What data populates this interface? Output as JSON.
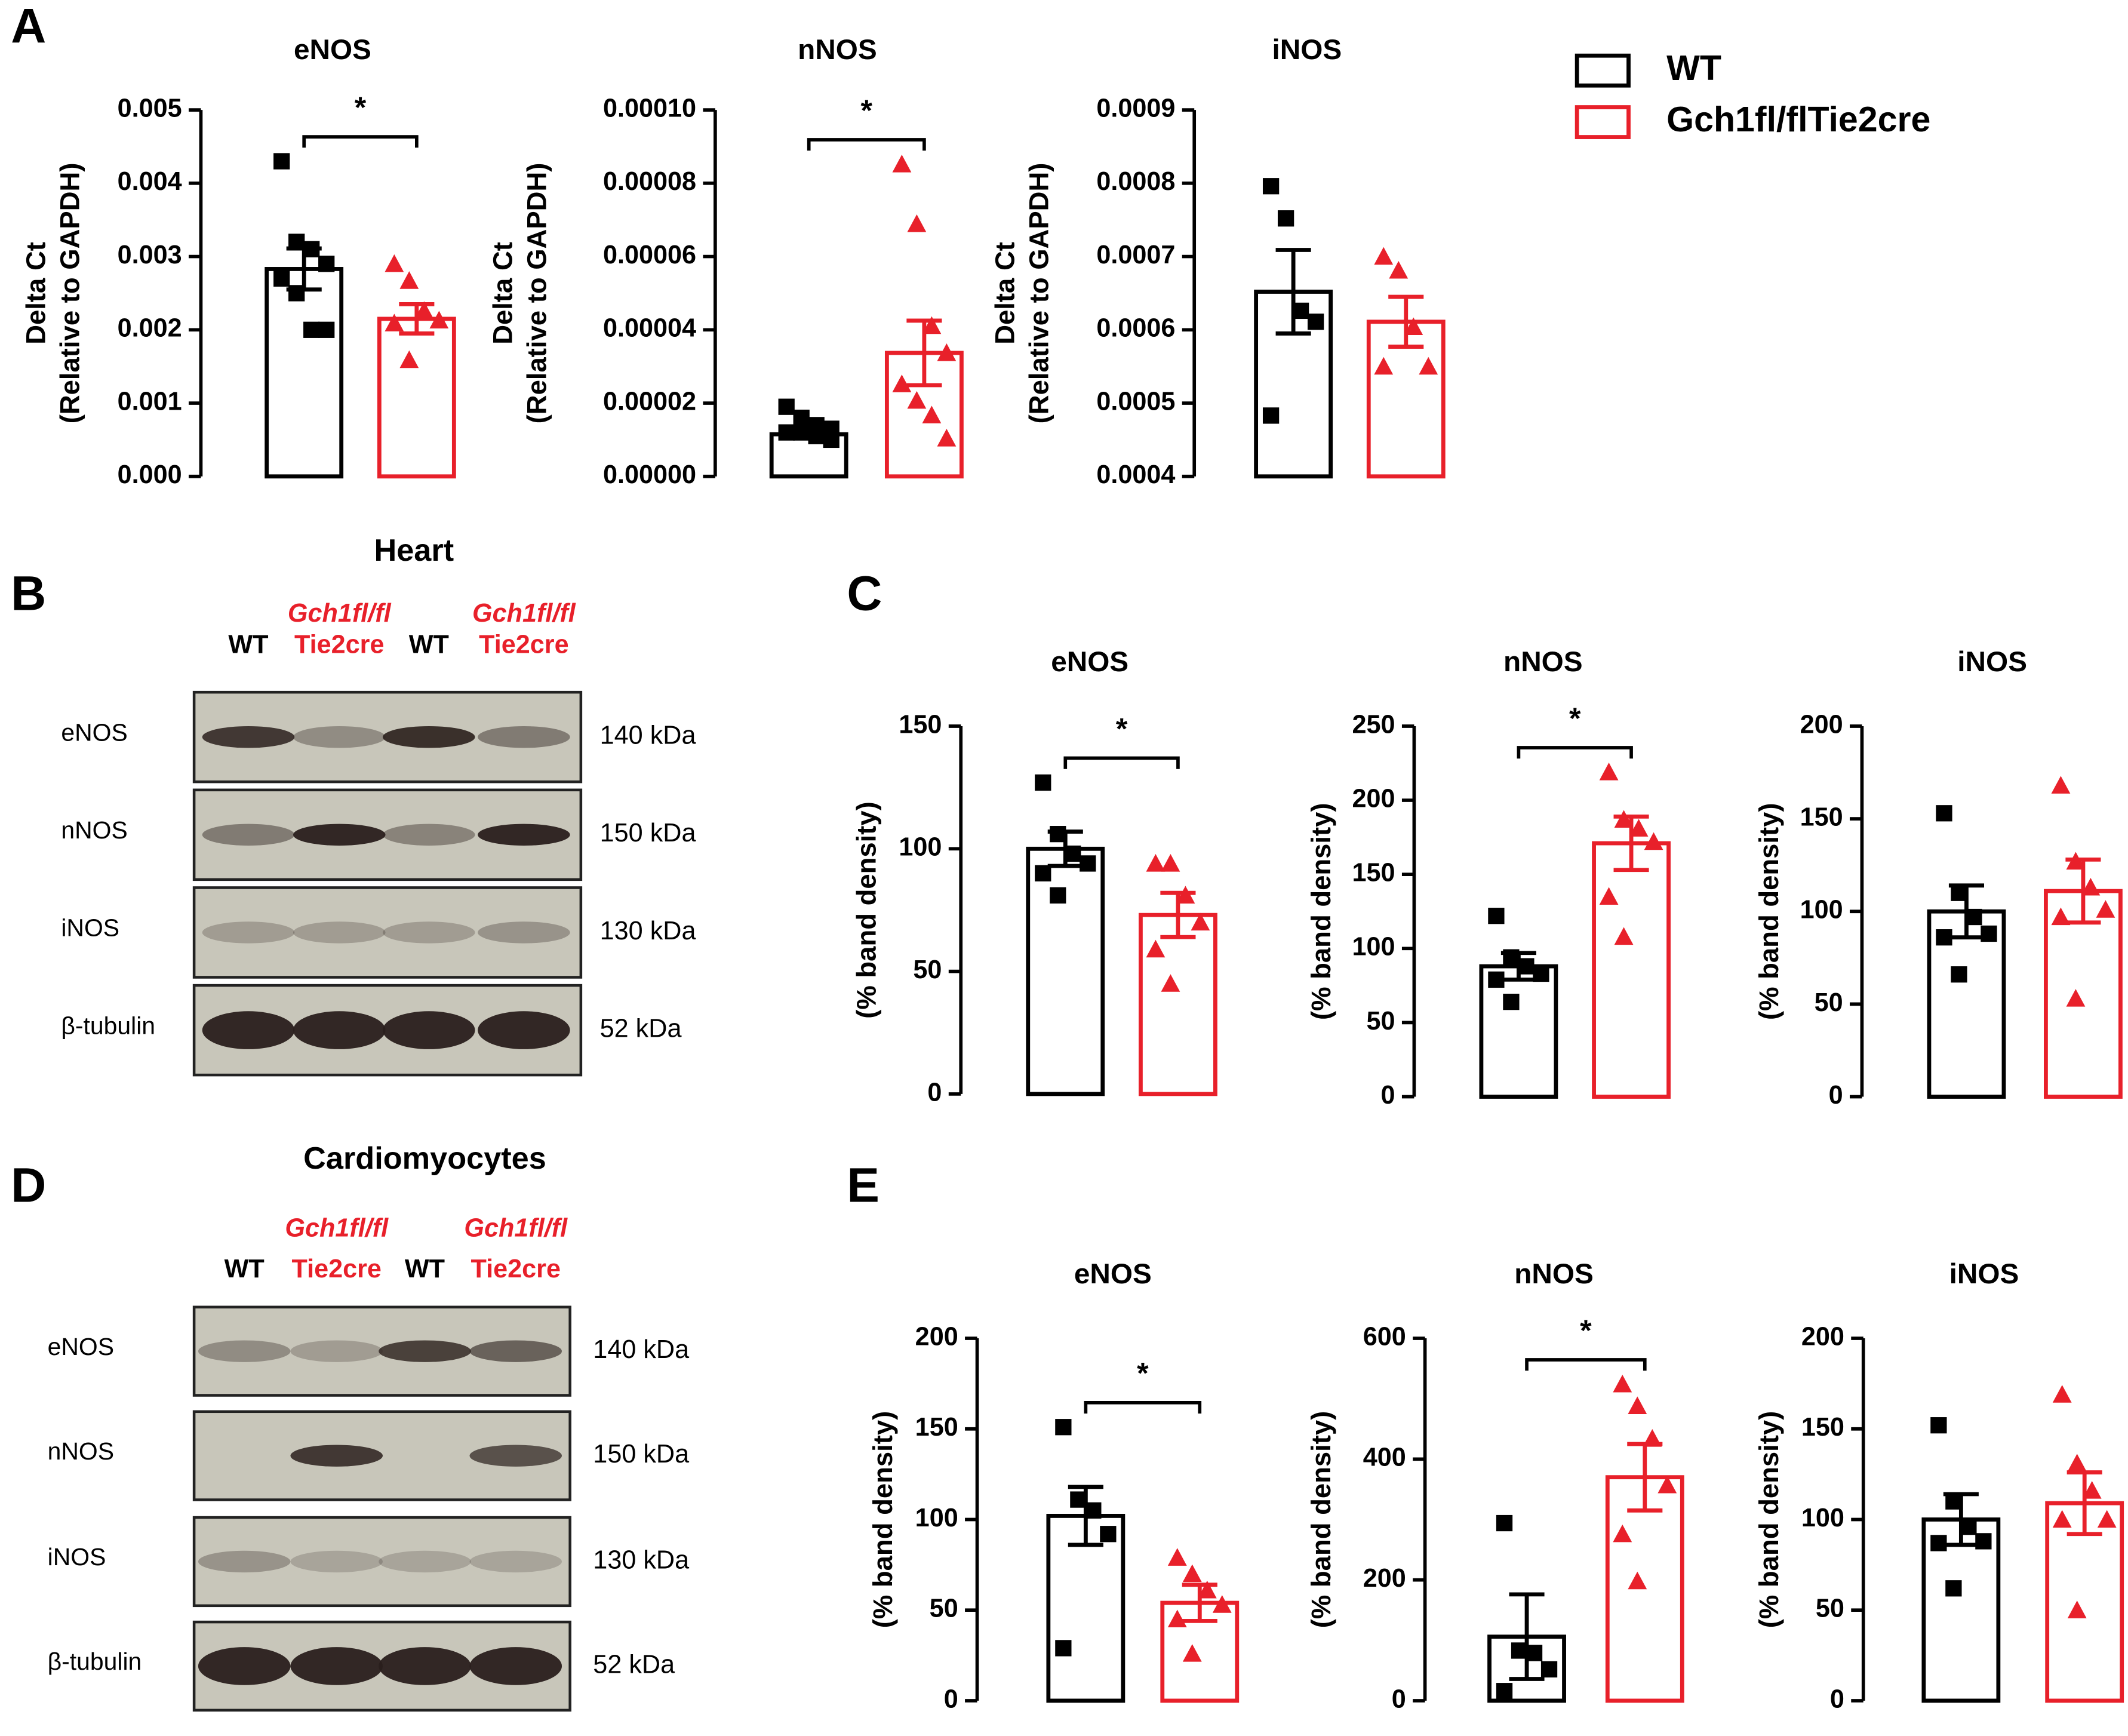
{
  "panel_labels": [
    "A",
    "B",
    "C",
    "D",
    "E"
  ],
  "chart_data": [
    {
      "type": "bar",
      "title": "eNOS",
      "ylabel": [
        "Delta Ct",
        "(Relative to GAPDH)"
      ],
      "significance": "*",
      "ylim": [
        0,
        0.005
      ],
      "yticks": [
        {
          "value": 0,
          "label": "0.000"
        },
        0.001,
        0.002,
        0.003,
        0.004,
        0.005
      ],
      "series": [
        {
          "name": "WT",
          "color": "#000000",
          "marker": "square",
          "values": [
            0.00283
          ],
          "errors": [
            0.00028
          ],
          "points": [
            0.0043,
            0.0032,
            0.0031,
            0.0029,
            0.0027,
            0.0025,
            0.002,
            0.002
          ]
        },
        {
          "name": "Gch1fl/flTie2cre",
          "color": "#e8202a",
          "marker": "triangle",
          "values": [
            0.00215
          ],
          "errors": [
            0.0002
          ],
          "points": [
            0.0029,
            0.00267,
            0.00226,
            0.00213,
            0.00209,
            0.00159
          ]
        }
      ]
    },
    {
      "type": "bar",
      "title": "nNOS",
      "ylabel": [
        "Delta Ct",
        "(Relative to GAPDH)"
      ],
      "significance": "*",
      "ylim": [
        0,
        0.0001
      ],
      "yticks": [
        {
          "value": 0,
          "label": "0.00000"
        },
        2e-05,
        4e-05,
        6e-05,
        8e-05,
        {
          "value": 0.0001,
          "label": "0.00010"
        }
      ],
      "series": [
        {
          "color": "#000000",
          "marker": "square",
          "values": [
            1.15e-05
          ],
          "errors": [
            1e-06
          ],
          "points": [
            1.9e-05,
            1.6e-05,
            1.4e-05,
            1.3e-05,
            1.2e-05,
            1.2e-05,
            1.1e-05,
            1e-05
          ]
        },
        {
          "color": "#e8202a",
          "marker": "triangle",
          "values": [
            3.37e-05
          ],
          "errors": [
            8.8e-06
          ],
          "points": [
            8.52e-05,
            6.89e-05,
            4.11e-05,
            3.37e-05,
            2.52e-05,
            2.07e-05,
            1.67e-05,
            1.04e-05
          ]
        }
      ]
    },
    {
      "type": "bar",
      "title": "iNOS",
      "ylabel": [
        "Delta Ct",
        "(Relative to GAPDH)"
      ],
      "ylim": [
        0.0004,
        0.0009
      ],
      "yticks": [
        0.0004,
        0.0005,
        0.0006,
        0.0007,
        0.0008,
        0.0009
      ],
      "series": [
        {
          "color": "#000000",
          "marker": "square",
          "values": [
            0.000652
          ],
          "errors": [
            5.7e-05
          ],
          "points": [
            0.000796,
            0.000752,
            0.000626,
            0.000611,
            0.000483
          ]
        },
        {
          "color": "#e8202a",
          "marker": "triangle",
          "values": [
            0.000611
          ],
          "errors": [
            3.4e-05
          ],
          "points": [
            0.0007,
            0.000681,
            0.000604,
            0.00055,
            0.00055
          ]
        }
      ]
    },
    {
      "type": "bar",
      "title": "eNOS",
      "ylabel": [
        "(% band density)"
      ],
      "significance": "*",
      "ylim": [
        0,
        150
      ],
      "yticks": [
        0,
        50,
        100,
        150
      ],
      "series": [
        {
          "color": "#000000",
          "marker": "square",
          "values": [
            100
          ],
          "errors": [
            7
          ],
          "points": [
            127,
            106,
            98,
            94,
            90,
            81
          ]
        },
        {
          "color": "#e8202a",
          "marker": "triangle",
          "values": [
            73
          ],
          "errors": [
            9
          ],
          "points": [
            94,
            94,
            81,
            70,
            59,
            45
          ]
        }
      ]
    },
    {
      "type": "bar",
      "title": "nNOS",
      "ylabel": [
        "(% band density)"
      ],
      "significance": "*",
      "ylim": [
        0,
        250
      ],
      "yticks": [
        0,
        50,
        100,
        150,
        200,
        250
      ],
      "series": [
        {
          "color": "#000000",
          "marker": "square",
          "values": [
            88
          ],
          "errors": [
            9
          ],
          "points": [
            122,
            94,
            88,
            83,
            79,
            64
          ]
        },
        {
          "color": "#e8202a",
          "marker": "triangle",
          "values": [
            171
          ],
          "errors": [
            18
          ],
          "points": [
            219,
            187,
            181,
            172,
            135,
            108
          ]
        }
      ]
    },
    {
      "type": "bar",
      "title": "iNOS",
      "ylabel": [
        "(% band density)"
      ],
      "ylim": [
        0,
        200
      ],
      "yticks": [
        0,
        50,
        100,
        150,
        200
      ],
      "series": [
        {
          "color": "#000000",
          "marker": "square",
          "values": [
            100
          ],
          "errors": [
            14
          ],
          "points": [
            153,
            110,
            97,
            88,
            86,
            66
          ]
        },
        {
          "color": "#e8202a",
          "marker": "triangle",
          "values": [
            111
          ],
          "errors": [
            17
          ],
          "points": [
            168,
            127,
            113,
            101,
            97,
            53
          ]
        }
      ]
    },
    {
      "type": "bar",
      "title": "eNOS",
      "ylabel": [
        "(% band density)"
      ],
      "significance": "*",
      "ylim": [
        0,
        200
      ],
      "yticks": [
        0,
        50,
        100,
        150,
        200
      ],
      "series": [
        {
          "color": "#000000",
          "marker": "square",
          "values": [
            102
          ],
          "errors": [
            16
          ],
          "points": [
            151,
            111,
            105,
            92,
            29
          ]
        },
        {
          "color": "#e8202a",
          "marker": "triangle",
          "values": [
            54
          ],
          "errors": [
            10
          ],
          "points": [
            79,
            70,
            61,
            53,
            45,
            26
          ]
        }
      ]
    },
    {
      "type": "bar",
      "title": "nNOS",
      "ylabel": [
        "(% band density)"
      ],
      "significance": "*",
      "ylim": [
        0,
        600
      ],
      "yticks": [
        0,
        200,
        400,
        600
      ],
      "series": [
        {
          "color": "#000000",
          "marker": "square",
          "values": [
            106
          ],
          "errors": [
            70
          ],
          "points": [
            294,
            83,
            79,
            52,
            16
          ]
        },
        {
          "color": "#e8202a",
          "marker": "triangle",
          "values": [
            370
          ],
          "errors": [
            55
          ],
          "points": [
            524,
            488,
            434,
            357,
            276,
            198
          ]
        }
      ]
    },
    {
      "type": "bar",
      "title": "iNOS",
      "ylabel": [
        "(% band density)"
      ],
      "ylim": [
        0,
        200
      ],
      "yticks": [
        0,
        50,
        100,
        150,
        200
      ],
      "series": [
        {
          "color": "#000000",
          "marker": "square",
          "values": [
            100
          ],
          "errors": [
            14
          ],
          "points": [
            152,
            110,
            96,
            88,
            87,
            62
          ]
        },
        {
          "color": "#e8202a",
          "marker": "triangle",
          "values": [
            109
          ],
          "errors": [
            17
          ],
          "points": [
            169,
            131,
            116,
            100,
            100,
            50
          ]
        }
      ]
    }
  ],
  "blots": [
    {
      "title": "Heart",
      "lanes": [
        [
          "WT"
        ],
        [
          "Gch1fl/fl",
          "Tie2cre"
        ],
        [
          "WT"
        ],
        [
          "Gch1fl/fl",
          "Tie2cre"
        ]
      ],
      "rows": [
        {
          "name": "eNOS",
          "size": "140  kDa"
        },
        {
          "name": "nNOS",
          "size": "150  kDa"
        },
        {
          "name": "iNOS",
          "size": "130  kDa"
        },
        {
          "name": "β-tubulin",
          "size": "52  kDa"
        }
      ]
    },
    {
      "title": "Cardiomyocytes",
      "lanes": [
        [
          "WT"
        ],
        [
          "Gch1fl/fl",
          "Tie2cre"
        ],
        [
          "WT"
        ],
        [
          "Gch1fl/fl",
          "Tie2cre"
        ]
      ],
      "rows": [
        {
          "name": "eNOS",
          "size": "140  kDa"
        },
        {
          "name": "nNOS",
          "size": "150  kDa"
        },
        {
          "name": "iNOS",
          "size": "130  kDa"
        },
        {
          "name": "β-tubulin",
          "size": "52 kDa"
        }
      ]
    }
  ]
}
